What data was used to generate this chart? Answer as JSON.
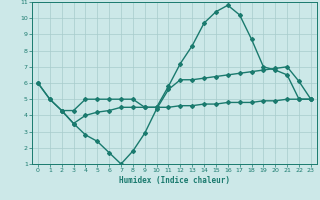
{
  "line1_x": [
    0,
    1,
    2,
    3,
    4,
    5,
    6,
    7,
    8,
    9,
    10,
    11,
    12,
    13,
    14,
    15,
    16,
    17,
    18,
    19,
    20,
    21,
    22,
    23
  ],
  "line1_y": [
    6.0,
    5.0,
    4.3,
    4.3,
    5.0,
    5.0,
    5.0,
    5.0,
    5.0,
    4.5,
    4.5,
    5.8,
    7.2,
    8.3,
    9.7,
    10.4,
    10.8,
    10.2,
    8.7,
    7.0,
    6.8,
    6.5,
    5.0,
    5.0
  ],
  "line2_x": [
    0,
    1,
    2,
    3,
    4,
    5,
    6,
    7,
    8,
    9,
    10,
    11,
    12,
    13,
    14,
    15,
    16,
    17,
    18,
    19,
    20,
    21,
    22,
    23
  ],
  "line2_y": [
    6.0,
    5.0,
    4.3,
    3.5,
    2.8,
    2.4,
    1.7,
    1.0,
    1.8,
    2.9,
    4.4,
    5.6,
    6.2,
    6.2,
    6.3,
    6.4,
    6.5,
    6.6,
    6.7,
    6.8,
    6.9,
    7.0,
    6.1,
    5.0
  ],
  "line3_x": [
    2,
    3,
    4,
    5,
    6,
    7,
    8,
    9,
    10,
    11,
    12,
    13,
    14,
    15,
    16,
    17,
    18,
    19,
    20,
    21,
    22,
    23
  ],
  "line3_y": [
    4.3,
    3.5,
    4.0,
    4.2,
    4.3,
    4.5,
    4.5,
    4.5,
    4.5,
    4.5,
    4.6,
    4.6,
    4.7,
    4.7,
    4.8,
    4.8,
    4.8,
    4.9,
    4.9,
    5.0,
    5.0,
    5.0
  ],
  "line_color": "#1a7a6e",
  "bg_color": "#cce8e8",
  "grid_color": "#a8cccc",
  "xlabel": "Humidex (Indice chaleur)",
  "xlim": [
    -0.5,
    23.5
  ],
  "ylim": [
    1,
    11
  ],
  "xticks": [
    0,
    1,
    2,
    3,
    4,
    5,
    6,
    7,
    8,
    9,
    10,
    11,
    12,
    13,
    14,
    15,
    16,
    17,
    18,
    19,
    20,
    21,
    22,
    23
  ],
  "yticks": [
    1,
    2,
    3,
    4,
    5,
    6,
    7,
    8,
    9,
    10,
    11
  ],
  "marker": "D",
  "markersize": 2.0,
  "linewidth": 1.0
}
